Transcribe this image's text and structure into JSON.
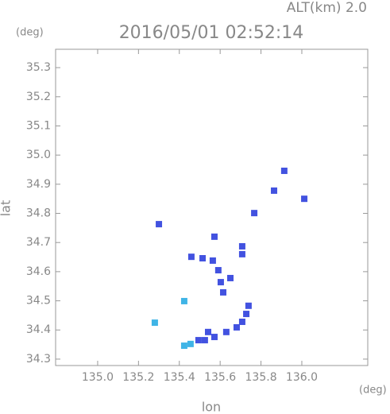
{
  "chart_data": {
    "type": "scatter",
    "title": "2016/05/01 02:52:14",
    "subtitle": "ALT(km) 2.0",
    "y_unit": "(deg)",
    "x_unit": "(deg)",
    "xlabel": "lon",
    "ylabel": "lat",
    "xlim": [
      134.794,
      136.323
    ],
    "ylim": [
      34.278,
      35.363
    ],
    "xticks": [
      {
        "value": 135,
        "label": "135.0"
      },
      135.2,
      135.4,
      135.6,
      135.8,
      {
        "value": 136,
        "label": "136.0"
      }
    ],
    "yticks": [
      34.3,
      34.4,
      34.5,
      34.6,
      34.7,
      34.8,
      34.9,
      {
        "value": 35,
        "label": "35.0"
      },
      35.1,
      35.2,
      35.3
    ],
    "x": [
      135.3,
      135.459,
      135.572,
      135.708,
      135.564,
      135.591,
      135.603,
      135.65,
      135.615,
      135.708,
      135.424,
      135.28,
      135.739,
      135.728,
      135.708,
      135.681,
      135.63,
      135.572,
      135.525,
      135.494,
      135.455,
      135.424,
      135.541,
      135.864,
      135.914,
      136.012,
      135.767,
      135.514
    ],
    "y": [
      34.763,
      34.651,
      34.72,
      34.687,
      34.638,
      34.605,
      34.564,
      34.578,
      34.529,
      34.66,
      34.499,
      34.425,
      34.483,
      34.455,
      34.428,
      34.409,
      34.393,
      34.376,
      34.365,
      34.365,
      34.352,
      34.346,
      34.393,
      34.878,
      34.946,
      34.85,
      34.801,
      34.646
    ],
    "colors": [
      "#4252e0",
      "#4252e0",
      "#4252e0",
      "#4252e0",
      "#4252e0",
      "#4252e0",
      "#4252e0",
      "#4252e0",
      "#4252e0",
      "#4252e0",
      "#3fb4e6",
      "#3fb4e6",
      "#4252e0",
      "#4252e0",
      "#4252e0",
      "#4252e0",
      "#4252e0",
      "#4252e0",
      "#4252e0",
      "#4252e0",
      "#3fb4e6",
      "#3fb4e6",
      "#4252e0",
      "#4252e0",
      "#4252e0",
      "#4252e0",
      "#4252e0",
      "#4252e0"
    ]
  }
}
